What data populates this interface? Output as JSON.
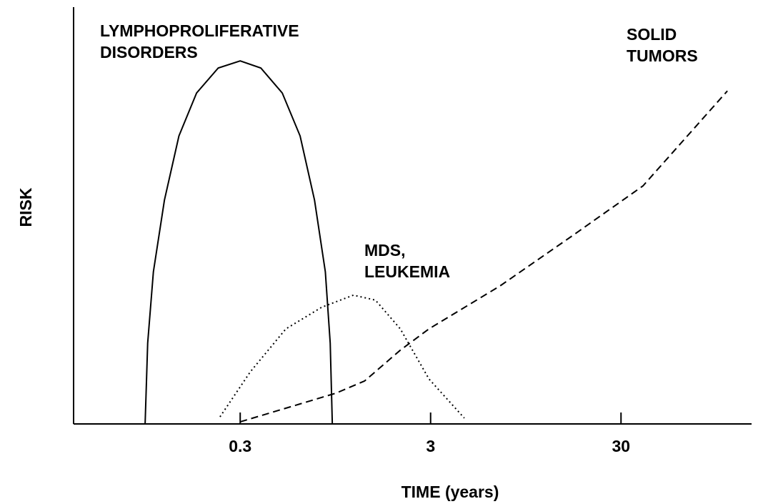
{
  "chart_data": {
    "type": "line",
    "xlabel": "TIME (years)",
    "ylabel": "RISK",
    "xscale": "log",
    "xlim": [
      0.04,
      143
    ],
    "xticks": [
      0.3,
      3,
      30
    ],
    "ylim": [
      0,
      100
    ],
    "grid": false,
    "series": [
      {
        "label_lines": [
          "LYMPHOPROLIFERATIVE",
          "DISORDERS"
        ],
        "color": "#000000",
        "line_style": "solid",
        "x": [
          0.095,
          0.098,
          0.105,
          0.12,
          0.143,
          0.177,
          0.23,
          0.3,
          0.385,
          0.499,
          0.619,
          0.737,
          0.84,
          0.891,
          0.914
        ],
        "values": [
          0,
          19.4,
          36.5,
          53.7,
          69.1,
          79.4,
          85.4,
          87.1,
          85.4,
          79.4,
          69.1,
          53.7,
          36.5,
          19.4,
          0
        ]
      },
      {
        "label_lines": [
          "MDS,",
          "LEUKEMIA"
        ],
        "color": "#000000",
        "line_style": "dotted",
        "x": [
          0.235,
          0.339,
          0.521,
          0.804,
          1.18,
          1.54,
          2.08,
          2.94,
          4.51
        ],
        "values": [
          1.7,
          12.5,
          22.8,
          28.0,
          30.9,
          29.7,
          22.8,
          10.8,
          1.4
        ]
      },
      {
        "label_lines": [
          "SOLID",
          "TUMORS"
        ],
        "color": "#000000",
        "line_style": "dashed",
        "x": [
          0.3,
          0.619,
          0.957,
          1.35,
          2.08,
          2.94,
          6.94,
          16.6,
          39.1,
          108.6
        ],
        "values": [
          0.5,
          4.8,
          7.4,
          10.3,
          17.7,
          22.8,
          33.1,
          45.1,
          57.1,
          79.9
        ]
      }
    ]
  }
}
